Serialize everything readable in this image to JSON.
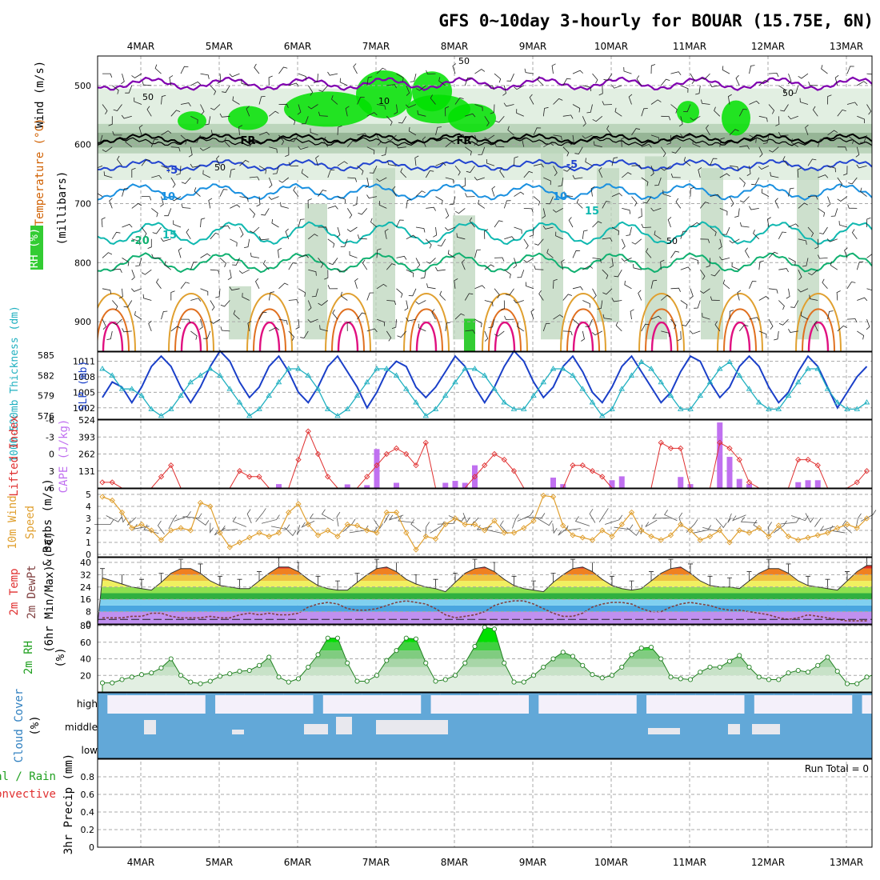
{
  "title": "GFS 0~10day 3-hourly for BOUAR (15.75E, 6N)",
  "date_labels": [
    "4MAR",
    "5MAR",
    "6MAR",
    "7MAR",
    "8MAR",
    "9MAR",
    "10MAR",
    "11MAR",
    "12MAR",
    "13MAR"
  ],
  "panel_labels": {
    "upper_wind": "Wind (m/s)",
    "upper_temp": "Temperature (°C)",
    "upper_rh": "RH (%)",
    "upper_units": "(millibars)",
    "thickness": "1000-500mb Thickness (dm)",
    "slp": "SLP (mb)",
    "lifted_index": "Lifted Index",
    "cape": "CAPE (J/kg)",
    "wind10_title": "10m Wind",
    "wind10_speed": "Speed",
    "wind10_barbs": "& Barbs (m/s)",
    "t2m_temp": "2m Temp",
    "t2m_dew": "2m DewPt",
    "t2m_minmax": "(6hr Min/Max) (°C)",
    "rh2m": "2m RH",
    "rh2m_units": "(%)",
    "cloud": "Cloud Cover",
    "cloud_units": "(%)",
    "precip_total": "tal / Rain",
    "precip_conv": "Convective",
    "precip_units": "3hr Precip (mm)",
    "run_total": "Run Total = 0"
  },
  "colors": {
    "rh_light": "#e2efe2",
    "rh_mid": "#bcd5bc",
    "rh_dark": "#96b596",
    "rh_bright": "#00e000",
    "purple": "#8000b0",
    "blue_m5": "#2244d0",
    "blue_10": "#1a90e0",
    "cyan_15": "#10b8b0",
    "teal_20": "#10b070",
    "orange_25": "#e0a030",
    "orange_30": "#e07020",
    "magenta_35": "#e01080",
    "slp": "#1a3fc8",
    "thickness": "#20b0c0",
    "li": "#e03030",
    "cape": "#c070f0",
    "wind10": "#e0a030",
    "cloud_blue": "#62a8d8",
    "cloud_bg": "#f4f0fa",
    "rh2m_line": "#208020"
  },
  "chart_data": [
    {
      "type": "contour",
      "name": "upper_air",
      "yaxis_ticks": [
        500,
        600,
        700,
        800,
        900
      ],
      "ylim": [
        450,
        950
      ],
      "isotherm_labels": [
        "-5",
        "FR",
        "-5",
        "10",
        "15",
        "20",
        "15",
        "10",
        "5",
        "-5"
      ],
      "rh_labels": [
        "50",
        "50",
        "50",
        "50",
        "50",
        "10",
        "10"
      ]
    },
    {
      "type": "line",
      "name": "slp_thickness",
      "slp_ticks": [
        1002,
        1005,
        1008,
        1011
      ],
      "thickness_ticks": [
        576,
        579,
        582,
        585
      ],
      "slp": [
        1004,
        1007,
        1006,
        1003,
        1006,
        1010,
        1012,
        1010,
        1006,
        1003,
        1006,
        1010,
        1013,
        1011,
        1007,
        1004,
        1006,
        1010,
        1012,
        1009,
        1005,
        1003,
        1006,
        1010,
        1012,
        1009,
        1006,
        1002,
        1005,
        1009,
        1011,
        1010,
        1006,
        1004,
        1006,
        1009,
        1012,
        1010,
        1006,
        1003,
        1006,
        1010,
        1013,
        1011,
        1007,
        1004,
        1006,
        1010,
        1012,
        1009,
        1005,
        1003,
        1006,
        1010,
        1012,
        1009,
        1006,
        1003,
        1005,
        1009,
        1012,
        1011,
        1007,
        1004,
        1006,
        1010,
        1012,
        1010,
        1006,
        1003,
        1005,
        1009,
        1012,
        1010,
        1006,
        1002,
        1005,
        1008,
        1010
      ],
      "thickness": [
        583,
        582,
        580,
        580,
        579,
        577,
        576,
        577,
        579,
        581,
        582,
        583,
        582,
        580,
        578,
        576,
        577,
        579,
        581,
        583,
        583,
        582,
        580,
        577,
        576,
        577,
        579,
        581,
        583,
        583,
        582,
        580,
        578,
        576,
        577,
        579,
        581,
        583,
        583,
        582,
        580,
        578,
        577,
        577,
        579,
        581,
        583,
        583,
        582,
        580,
        578,
        576,
        577,
        580,
        582,
        584,
        583,
        581,
        579,
        577,
        577,
        579,
        581,
        583,
        584,
        582,
        580,
        578,
        577,
        577,
        579,
        581,
        583,
        583,
        580,
        578,
        577,
        577,
        578
      ]
    },
    {
      "type": "bar",
      "name": "cape_li",
      "cape_ticks": [
        131,
        262,
        393,
        524
      ],
      "li_ticks": [
        "-6",
        "-3",
        "0",
        "3",
        "6"
      ],
      "li_dashed": 0,
      "cape": [
        0,
        0,
        0,
        0,
        0,
        0,
        0,
        0,
        0,
        0,
        0,
        0,
        0,
        0,
        0,
        0,
        0,
        0,
        0,
        0,
        0,
        0,
        0,
        0,
        0,
        0,
        0,
        0,
        0,
        0,
        0,
        0,
        0,
        0,
        0,
        0,
        0,
        0,
        0,
        0,
        0,
        0,
        0,
        0,
        0,
        0,
        0,
        0,
        0,
        0,
        0,
        0,
        0,
        0,
        0,
        0,
        0,
        0,
        0,
        0,
        0,
        0,
        0,
        0,
        0,
        0,
        0,
        0,
        0,
        0,
        0,
        0,
        0,
        0,
        0,
        0,
        0,
        0,
        0
      ],
      "cape_bars": [
        [
          18,
          30
        ],
        [
          25,
          28
        ],
        [
          27,
          22
        ],
        [
          28,
          300
        ],
        [
          30,
          40
        ],
        [
          35,
          40
        ],
        [
          36,
          55
        ],
        [
          37,
          40
        ],
        [
          38,
          175
        ],
        [
          46,
          80
        ],
        [
          47,
          30
        ],
        [
          52,
          60
        ],
        [
          53,
          90
        ],
        [
          59,
          85
        ],
        [
          60,
          30
        ],
        [
          63,
          505
        ],
        [
          64,
          240
        ],
        [
          65,
          70
        ],
        [
          66,
          30
        ],
        [
          71,
          45
        ],
        [
          72,
          60
        ],
        [
          73,
          60
        ],
        [
          87,
          25
        ]
      ],
      "li": [
        5,
        5,
        6,
        6,
        6,
        6,
        4,
        2,
        6,
        6,
        6,
        6,
        6,
        6,
        3,
        4,
        4,
        6,
        6,
        6,
        1,
        -4,
        0,
        4,
        6,
        6,
        6,
        4,
        2,
        0,
        -1,
        0,
        2,
        -2,
        6,
        6,
        6,
        6,
        4,
        2,
        0,
        1,
        3,
        6,
        6,
        6,
        6,
        6,
        2,
        2,
        3,
        4,
        6,
        6,
        6,
        6,
        6,
        -2,
        -1,
        -1,
        6,
        6,
        6,
        -2,
        -1,
        1,
        5,
        6,
        6,
        6,
        6,
        1,
        1,
        2,
        6,
        6,
        6,
        5,
        3
      ]
    },
    {
      "type": "line",
      "name": "wind10",
      "yticks": [
        0,
        1,
        2,
        3,
        4,
        5
      ],
      "values": [
        4.8,
        4.5,
        3.5,
        2.2,
        2.5,
        2.0,
        1.2,
        2.0,
        2.2,
        2.0,
        4.3,
        4.0,
        1.8,
        0.6,
        1.0,
        1.4,
        1.8,
        1.5,
        1.8,
        3.5,
        4.2,
        2.5,
        1.6,
        2.0,
        1.5,
        2.5,
        2.4,
        2.0,
        1.8,
        3.5,
        3.5,
        1.8,
        0.4,
        1.5,
        1.3,
        2.5,
        3.0,
        2.5,
        2.5,
        2.0,
        2.8,
        1.8,
        1.8,
        2.2,
        2.8,
        4.9,
        4.8,
        2.4,
        1.6,
        1.4,
        1.2,
        2.0,
        1.5,
        2.5,
        3.5,
        2.0,
        1.5,
        1.2,
        1.6,
        2.5,
        2.0,
        1.2,
        1.5,
        2.0,
        1.0,
        2.0,
        1.8,
        2.2,
        1.5,
        2.4,
        1.5,
        1.2,
        1.4,
        1.6,
        1.8,
        2.2,
        2.5,
        2.2,
        3.0
      ]
    },
    {
      "type": "area",
      "name": "t2m",
      "yticks": [
        0,
        8,
        16,
        24,
        32,
        40
      ],
      "bands": [
        0,
        8,
        12,
        16,
        20,
        24,
        28,
        32,
        36,
        40
      ],
      "temp": [
        30,
        28,
        26,
        24,
        23,
        22,
        27,
        33,
        36,
        36,
        33,
        28,
        25,
        24,
        23,
        23,
        28,
        33,
        37,
        37,
        34,
        29,
        25,
        23,
        22,
        22,
        27,
        32,
        36,
        37,
        34,
        29,
        26,
        24,
        23,
        21,
        27,
        33,
        36,
        37,
        34,
        29,
        25,
        23,
        22,
        21,
        27,
        32,
        36,
        37,
        34,
        29,
        25,
        23,
        22,
        23,
        28,
        33,
        36,
        37,
        33,
        28,
        25,
        24,
        24,
        23,
        28,
        33,
        36,
        36,
        33,
        28,
        25,
        24,
        23,
        22,
        28,
        34,
        38,
        38,
        34,
        28,
        24,
        22,
        21
      ],
      "dewpt": [
        4,
        4,
        4,
        5,
        5,
        7,
        7,
        5,
        4,
        4,
        4,
        5,
        4,
        4,
        6,
        7,
        6,
        7,
        6,
        6,
        7,
        11,
        13,
        14,
        13,
        10,
        9,
        9,
        10,
        12,
        14,
        15,
        14,
        13,
        10,
        6,
        4,
        5,
        6,
        8,
        12,
        14,
        15,
        15,
        13,
        10,
        7,
        5,
        5,
        7,
        11,
        13,
        14,
        14,
        13,
        10,
        8,
        8,
        11,
        13,
        14,
        13,
        12,
        10,
        9,
        9,
        8,
        7,
        6,
        4,
        3,
        4,
        6,
        5,
        4,
        3,
        2,
        2,
        2
      ]
    },
    {
      "type": "area",
      "name": "rh2m",
      "yticks": [
        20,
        40,
        60,
        80
      ],
      "values": [
        11,
        11,
        15,
        18,
        21,
        23,
        29,
        40,
        20,
        12,
        10,
        13,
        19,
        22,
        25,
        26,
        32,
        42,
        18,
        12,
        16,
        30,
        45,
        65,
        65,
        35,
        13,
        13,
        20,
        38,
        50,
        65,
        64,
        35,
        13,
        15,
        20,
        35,
        55,
        78,
        76,
        35,
        12,
        12,
        20,
        30,
        40,
        48,
        43,
        32,
        21,
        17,
        20,
        30,
        45,
        53,
        54,
        40,
        18,
        16,
        15,
        24,
        30,
        30,
        37,
        44,
        30,
        18,
        15,
        15,
        23,
        26,
        24,
        32,
        42,
        25,
        10,
        10,
        18,
        22,
        28,
        45,
        53
      ]
    },
    {
      "type": "heatmap",
      "name": "cloud_cover",
      "levels": [
        "high",
        "middle",
        "low"
      ]
    },
    {
      "type": "bar",
      "name": "precip",
      "yticks": [
        0,
        0.2,
        0.4,
        0.6,
        0.8
      ],
      "ylim": [
        0,
        1
      ],
      "values": []
    }
  ]
}
